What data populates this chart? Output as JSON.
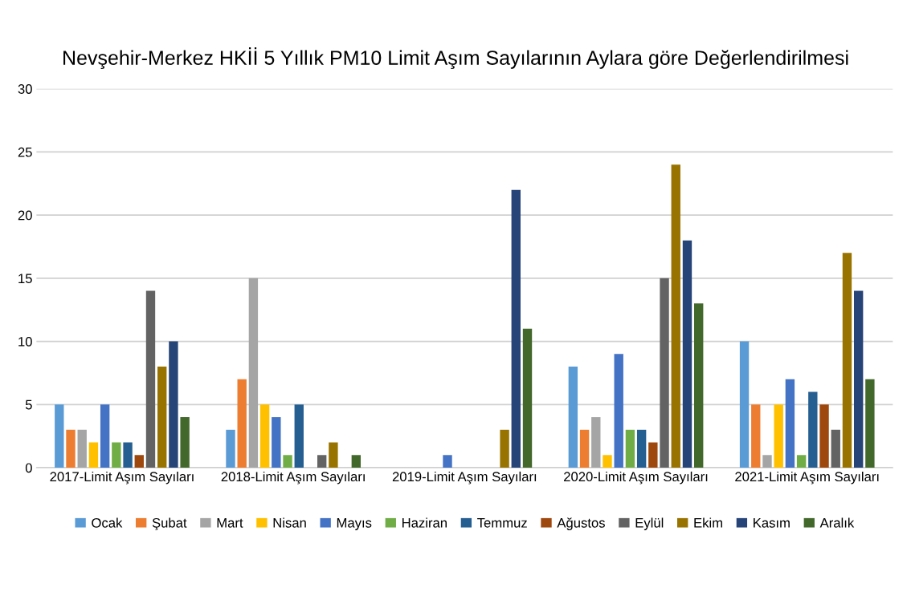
{
  "chart_data": {
    "type": "bar",
    "title": "Nevşehir-Merkez HKİİ 5 Yıllık PM10 Limit Aşım Sayılarının Aylara göre Değerlendirilmesi",
    "categories": [
      "2017-Limit Aşım Sayıları",
      "2018-Limit Aşım Sayıları",
      "2019-Limit Aşım Sayıları",
      "2020-Limit Aşım Sayıları",
      "2021-Limit Aşım Sayıları"
    ],
    "series": [
      {
        "name": "Ocak",
        "color": "#5b9bd5",
        "values": [
          5,
          3,
          0,
          8,
          10
        ]
      },
      {
        "name": "Şubat",
        "color": "#ed7d31",
        "values": [
          3,
          7,
          0,
          3,
          5
        ]
      },
      {
        "name": "Mart",
        "color": "#a5a5a5",
        "values": [
          3,
          15,
          0,
          4,
          1
        ]
      },
      {
        "name": "Nisan",
        "color": "#ffc000",
        "values": [
          2,
          5,
          0,
          1,
          5
        ]
      },
      {
        "name": "Mayıs",
        "color": "#4472c4",
        "values": [
          5,
          4,
          1,
          9,
          7
        ]
      },
      {
        "name": "Haziran",
        "color": "#70ad47",
        "values": [
          2,
          1,
          0,
          3,
          1
        ]
      },
      {
        "name": "Temmuz",
        "color": "#255e91",
        "values": [
          2,
          5,
          0,
          3,
          6
        ]
      },
      {
        "name": "Ağustos",
        "color": "#9e480e",
        "values": [
          1,
          0,
          0,
          2,
          5
        ]
      },
      {
        "name": "Eylül",
        "color": "#636363",
        "values": [
          14,
          1,
          0,
          15,
          3
        ]
      },
      {
        "name": "Ekim",
        "color": "#997300",
        "values": [
          8,
          2,
          3,
          24,
          17
        ]
      },
      {
        "name": "Kasım",
        "color": "#264478",
        "values": [
          10,
          0,
          22,
          18,
          14
        ]
      },
      {
        "name": "Aralık",
        "color": "#43682b",
        "values": [
          4,
          1,
          11,
          13,
          7
        ]
      }
    ],
    "ylim": [
      0,
      30
    ],
    "yticks": [
      0,
      5,
      10,
      15,
      20,
      25,
      30
    ],
    "grid": "y",
    "legend": "bottom"
  }
}
